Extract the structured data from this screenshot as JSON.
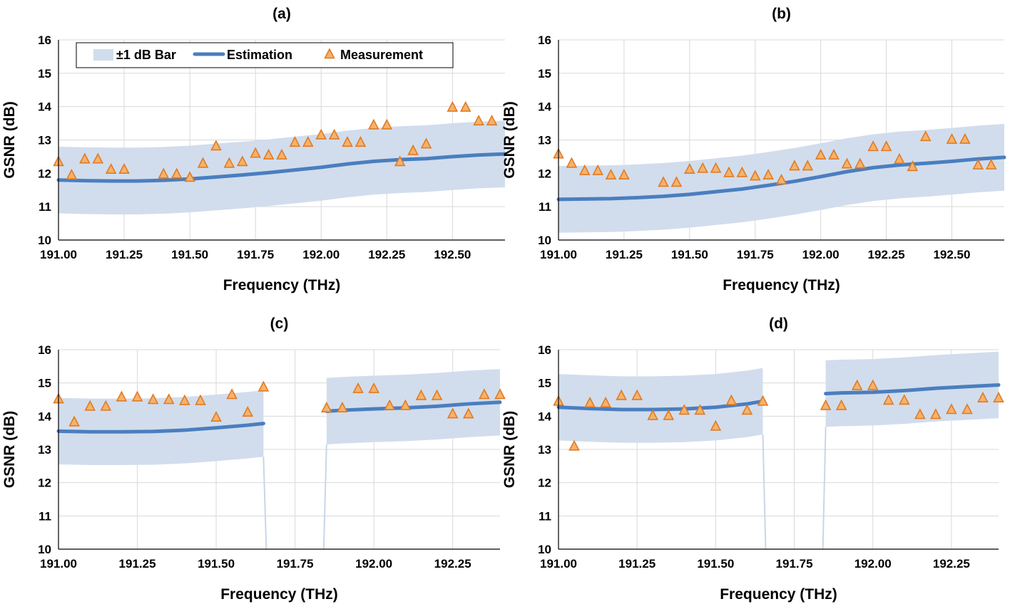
{
  "legend": {
    "band_label": "±1 dB Bar",
    "estimation_label": "Estimation",
    "measurement_label": "Measurement"
  },
  "colors": {
    "band": "#d1dded",
    "estimation": "#4a7ebf",
    "marker_fill": "#f6b26b",
    "marker_stroke": "#e07b23",
    "grid": "#d9d9d9"
  },
  "chart_data": [
    {
      "type": "line",
      "title": "(a)",
      "xlabel": "Frequency (THz)",
      "ylabel": "GSNR (dB)",
      "xlim": [
        191.0,
        192.7
      ],
      "ylim": [
        10,
        16
      ],
      "xticks": [
        "191.00",
        "191.25",
        "191.50",
        "191.75",
        "192.00",
        "192.25",
        "192.50"
      ],
      "yticks": [
        "10",
        "11",
        "12",
        "13",
        "14",
        "15",
        "16"
      ],
      "grid": true,
      "legend_position": "top",
      "estimation": {
        "x": [
          191.0,
          191.1,
          191.2,
          191.3,
          191.4,
          191.5,
          191.6,
          191.7,
          191.8,
          191.9,
          192.0,
          192.1,
          192.2,
          192.3,
          192.4,
          192.5,
          192.6,
          192.7
        ],
        "y": [
          11.8,
          11.78,
          11.77,
          11.77,
          11.79,
          11.83,
          11.89,
          11.95,
          12.02,
          12.1,
          12.18,
          12.28,
          12.36,
          12.41,
          12.44,
          12.5,
          12.55,
          12.58
        ]
      },
      "band_offset_db": 1,
      "measurement": {
        "x": [
          191.0,
          191.05,
          191.1,
          191.15,
          191.2,
          191.25,
          191.4,
          191.45,
          191.5,
          191.55,
          191.6,
          191.65,
          191.7,
          191.75,
          191.8,
          191.85,
          191.9,
          191.95,
          192.0,
          192.05,
          192.1,
          192.15,
          192.2,
          192.25,
          192.3,
          192.35,
          192.4,
          192.5,
          192.55,
          192.6,
          192.65
        ],
        "y": [
          12.35,
          11.95,
          12.43,
          12.43,
          12.12,
          12.12,
          11.98,
          11.98,
          11.88,
          12.3,
          12.82,
          12.3,
          12.35,
          12.6,
          12.55,
          12.55,
          12.93,
          12.93,
          13.15,
          13.15,
          12.93,
          12.93,
          13.45,
          13.45,
          12.35,
          12.68,
          12.88,
          13.98,
          13.98,
          13.57,
          13.57
        ]
      }
    },
    {
      "type": "line",
      "title": "(b)",
      "xlabel": "Frequency (THz)",
      "ylabel": "GSNR (dB)",
      "xlim": [
        191.0,
        192.7
      ],
      "ylim": [
        10,
        16
      ],
      "xticks": [
        "191.00",
        "191.25",
        "191.50",
        "191.75",
        "192.00",
        "192.25",
        "192.50"
      ],
      "yticks": [
        "10",
        "11",
        "12",
        "13",
        "14",
        "15",
        "16"
      ],
      "grid": true,
      "estimation": {
        "x": [
          191.0,
          191.1,
          191.2,
          191.3,
          191.4,
          191.5,
          191.6,
          191.7,
          191.8,
          191.9,
          192.0,
          192.1,
          192.2,
          192.3,
          192.4,
          192.5,
          192.6,
          192.7
        ],
        "y": [
          11.22,
          11.23,
          11.24,
          11.27,
          11.31,
          11.37,
          11.45,
          11.53,
          11.64,
          11.76,
          11.9,
          12.05,
          12.17,
          12.25,
          12.3,
          12.36,
          12.43,
          12.48
        ]
      },
      "band_offset_db": 1,
      "measurement": {
        "x": [
          191.0,
          191.05,
          191.1,
          191.15,
          191.2,
          191.25,
          191.4,
          191.45,
          191.5,
          191.55,
          191.6,
          191.65,
          191.7,
          191.75,
          191.8,
          191.85,
          191.9,
          191.95,
          192.0,
          192.05,
          192.1,
          192.15,
          192.2,
          192.25,
          192.3,
          192.35,
          192.4,
          192.5,
          192.55,
          192.6,
          192.65
        ],
        "y": [
          12.58,
          12.3,
          12.08,
          12.08,
          11.95,
          11.95,
          11.73,
          11.73,
          12.12,
          12.15,
          12.15,
          12.02,
          12.02,
          11.92,
          11.95,
          11.8,
          12.22,
          12.22,
          12.55,
          12.55,
          12.28,
          12.28,
          12.8,
          12.8,
          12.42,
          12.2,
          13.1,
          13.02,
          13.02,
          12.25,
          12.25
        ]
      }
    },
    {
      "type": "line",
      "title": "(c)",
      "xlabel": "Frequency (THz)",
      "ylabel": "GSNR (dB)",
      "xlim": [
        191.0,
        192.4
      ],
      "ylim": [
        10,
        16
      ],
      "xticks": [
        "191.00",
        "191.25",
        "191.50",
        "191.75",
        "192.00",
        "192.25"
      ],
      "yticks": [
        "10",
        "11",
        "12",
        "13",
        "14",
        "15",
        "16"
      ],
      "grid": true,
      "estimation_segments": [
        {
          "x": [
            191.0,
            191.1,
            191.2,
            191.3,
            191.4,
            191.5,
            191.6,
            191.65
          ],
          "y": [
            13.55,
            13.53,
            13.53,
            13.54,
            13.58,
            13.65,
            13.73,
            13.78
          ]
        },
        {
          "x": [
            191.85,
            191.9,
            192.0,
            192.1,
            192.2,
            192.3,
            192.4
          ],
          "y": [
            14.15,
            14.18,
            14.22,
            14.25,
            14.3,
            14.37,
            14.42
          ]
        }
      ],
      "band_offset_db": 1,
      "measurement": {
        "x": [
          191.0,
          191.05,
          191.1,
          191.15,
          191.2,
          191.25,
          191.3,
          191.35,
          191.4,
          191.45,
          191.5,
          191.55,
          191.6,
          191.65,
          191.85,
          191.9,
          191.95,
          192.0,
          192.05,
          192.1,
          192.15,
          192.2,
          192.25,
          192.3,
          192.35,
          192.4
        ],
        "y": [
          14.52,
          13.83,
          14.3,
          14.3,
          14.58,
          14.58,
          14.5,
          14.5,
          14.47,
          14.47,
          13.97,
          14.65,
          14.12,
          14.88,
          14.25,
          14.25,
          14.83,
          14.83,
          14.32,
          14.32,
          14.62,
          14.62,
          14.07,
          14.07,
          14.65,
          14.65
        ]
      }
    },
    {
      "type": "line",
      "title": "(d)",
      "xlabel": "Frequency (THz)",
      "ylabel": "GSNR (dB)",
      "xlim": [
        191.0,
        192.4
      ],
      "ylim": [
        10,
        16
      ],
      "xticks": [
        "191.00",
        "191.25",
        "191.50",
        "191.75",
        "192.00",
        "192.25"
      ],
      "yticks": [
        "10",
        "11",
        "12",
        "13",
        "14",
        "15",
        "16"
      ],
      "grid": true,
      "estimation_segments": [
        {
          "x": [
            191.0,
            191.1,
            191.2,
            191.3,
            191.4,
            191.5,
            191.6,
            191.65
          ],
          "y": [
            14.27,
            14.23,
            14.2,
            14.2,
            14.22,
            14.27,
            14.37,
            14.45
          ]
        },
        {
          "x": [
            191.85,
            191.9,
            192.0,
            192.1,
            192.2,
            192.3,
            192.4
          ],
          "y": [
            14.68,
            14.7,
            14.72,
            14.77,
            14.84,
            14.89,
            14.94
          ]
        }
      ],
      "band_offset_db": 1,
      "measurement": {
        "x": [
          191.0,
          191.05,
          191.1,
          191.15,
          191.2,
          191.25,
          191.3,
          191.35,
          191.4,
          191.45,
          191.5,
          191.55,
          191.6,
          191.65,
          191.85,
          191.9,
          191.95,
          192.0,
          192.05,
          192.1,
          192.15,
          192.2,
          192.25,
          192.3,
          192.35,
          192.4
        ],
        "y": [
          14.45,
          13.1,
          14.4,
          14.4,
          14.62,
          14.62,
          14.02,
          14.02,
          14.18,
          14.18,
          13.7,
          14.47,
          14.18,
          14.45,
          14.32,
          14.32,
          14.92,
          14.92,
          14.48,
          14.48,
          14.05,
          14.05,
          14.2,
          14.2,
          14.55,
          14.55
        ]
      }
    }
  ]
}
